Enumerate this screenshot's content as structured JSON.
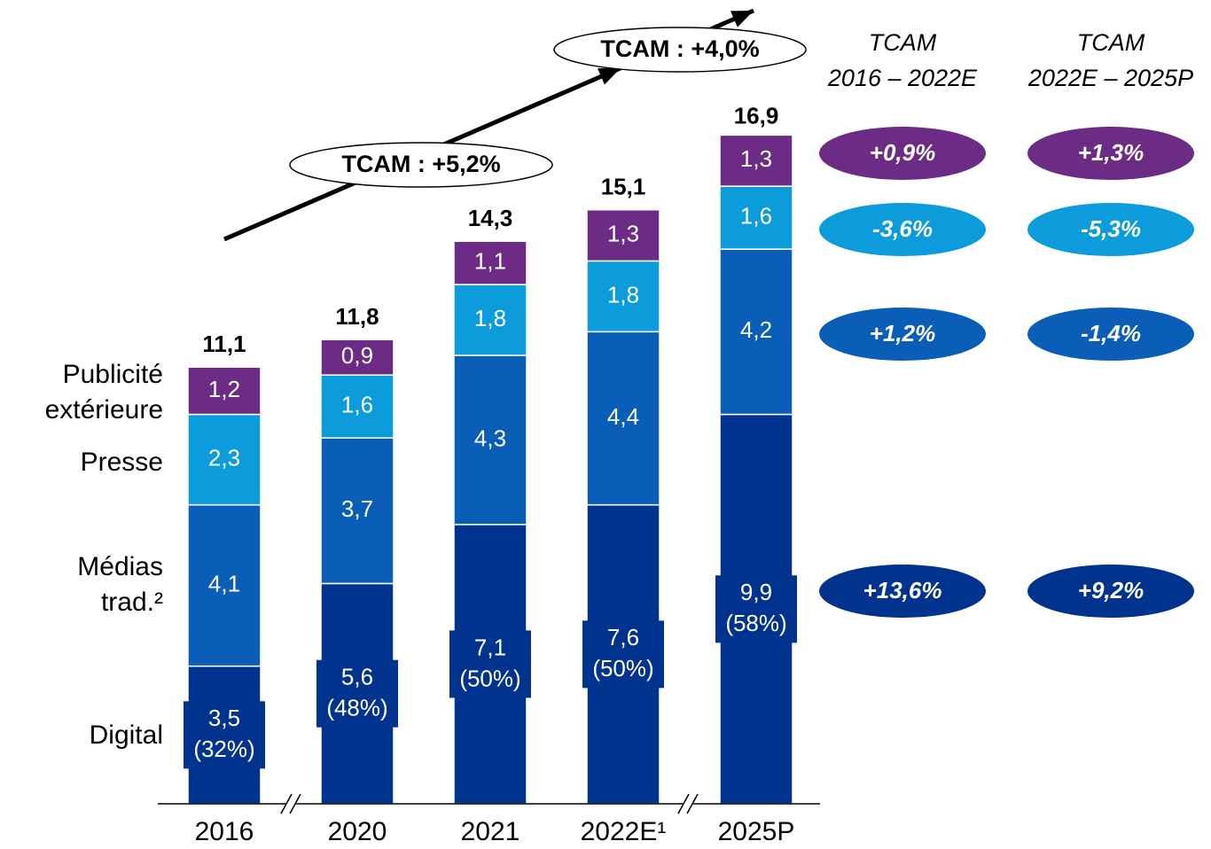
{
  "chart_data": {
    "type": "stacked_bar",
    "categories": [
      "2016",
      "2020",
      "2021",
      "2022E¹",
      "2025P"
    ],
    "ylim": [
      0,
      18
    ],
    "series": [
      {
        "name": "Digital",
        "color": "#00338d",
        "values": [
          3.5,
          5.6,
          7.1,
          7.6,
          9.9
        ],
        "value_labels": [
          "3,5",
          "5,6",
          "7,1",
          "7,6",
          "9,9"
        ],
        "share_labels": [
          "(32%)",
          "(48%)",
          "(50%)",
          "(50%)",
          "(58%)"
        ],
        "cagr_labels": [
          "+13,6%",
          "+9,2%"
        ]
      },
      {
        "name": "Médias trad.²",
        "color": "#0a5eb7",
        "values": [
          4.1,
          3.7,
          4.3,
          4.4,
          4.2
        ],
        "value_labels": [
          "4,1",
          "3,7",
          "4,3",
          "4,4",
          "4,2"
        ],
        "cagr_labels": [
          "+1,2%",
          "-1,4%"
        ]
      },
      {
        "name": "Presse",
        "color": "#0c9bdb",
        "values": [
          2.3,
          1.6,
          1.8,
          1.8,
          1.6
        ],
        "value_labels": [
          "2,3",
          "1,6",
          "1,8",
          "1,8",
          "1,6"
        ],
        "cagr_labels": [
          "-3,6%",
          "-5,3%"
        ]
      },
      {
        "name": "Publicité extérieure",
        "color": "#6c2c85",
        "values": [
          1.2,
          0.9,
          1.1,
          1.3,
          1.3
        ],
        "value_labels": [
          "1,2",
          "0,9",
          "1,1",
          "1,3",
          "1,3"
        ],
        "cagr_labels": [
          "+0,9%",
          "+1,3%"
        ]
      }
    ],
    "totals": [
      11.1,
      11.8,
      14.3,
      15.1,
      16.9
    ],
    "total_labels": [
      "11,1",
      "11,8",
      "14,3",
      "15,1",
      "16,9"
    ],
    "annotations": [
      "TCAM : +5,2%",
      "TCAM : +4,0%"
    ],
    "cagr_headers": [
      {
        "title": "TCAM",
        "period": "2016 – 2022E"
      },
      {
        "title": "TCAM",
        "period": "2022E – 2025P"
      }
    ]
  }
}
